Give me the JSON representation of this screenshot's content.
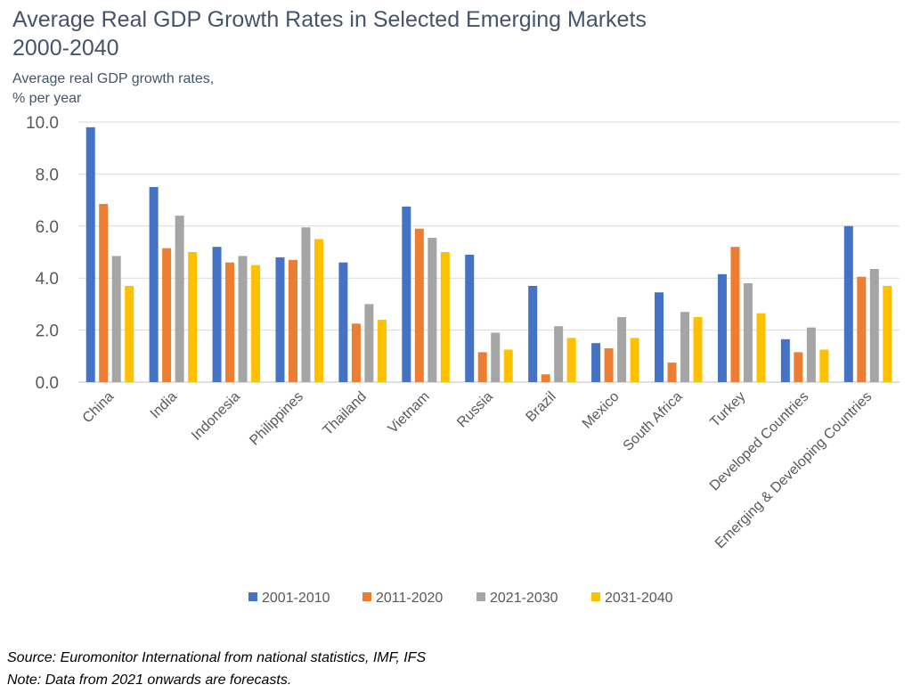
{
  "chart_data": {
    "type": "bar",
    "title_line1": "Average Real GDP Growth Rates in Selected Emerging Markets",
    "title_line2": "2000-2040",
    "ylabel_line1": "Average real GDP growth rates,",
    "ylabel_line2": "% per year",
    "ylim": [
      0,
      10
    ],
    "yticks": [
      "0.0",
      "2.0",
      "4.0",
      "6.0",
      "8.0",
      "10.0"
    ],
    "grid": true,
    "legend_position": "bottom",
    "categories": [
      "China",
      "India",
      "Indonesia",
      "Philippines",
      "Thailand",
      "Vietnam",
      "Russia",
      "Brazil",
      "Mexico",
      "South Africa",
      "Turkey",
      "Developed Countries",
      "Emerging & Developing Countries"
    ],
    "series": [
      {
        "name": "2001-2010",
        "color": "#4472c4",
        "values": [
          9.8,
          7.5,
          5.2,
          4.8,
          4.6,
          6.75,
          4.9,
          3.7,
          1.5,
          3.45,
          4.15,
          1.65,
          6.0
        ]
      },
      {
        "name": "2011-2020",
        "color": "#ed7d31",
        "values": [
          6.85,
          5.15,
          4.6,
          4.7,
          2.25,
          5.9,
          1.15,
          0.3,
          1.3,
          0.75,
          5.2,
          1.15,
          4.05
        ]
      },
      {
        "name": "2021-2030",
        "color": "#a5a5a5",
        "values": [
          4.85,
          6.4,
          4.85,
          5.95,
          3.0,
          5.55,
          1.9,
          2.15,
          2.5,
          2.7,
          3.8,
          2.1,
          4.35
        ]
      },
      {
        "name": "2031-2040",
        "color": "#ffc000",
        "values": [
          3.7,
          5.0,
          4.5,
          5.5,
          2.4,
          5.0,
          1.25,
          1.7,
          1.7,
          2.5,
          2.65,
          1.25,
          3.7
        ]
      }
    ]
  },
  "footer": {
    "source": "Source: Euromonitor International from national statistics, IMF, IFS",
    "note": "Note: Data from 2021 onwards are forecasts."
  }
}
